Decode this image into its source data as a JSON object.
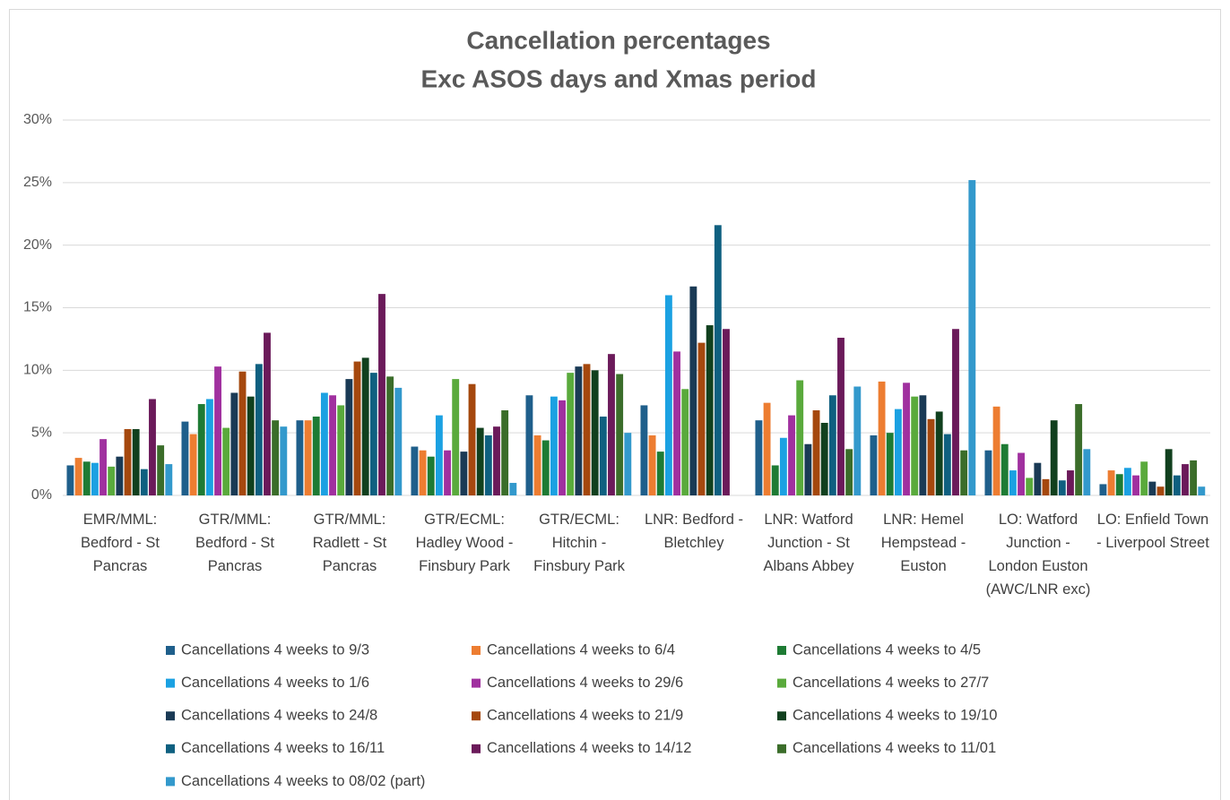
{
  "chart_data": {
    "type": "bar",
    "title": "Cancellation percentages",
    "subtitle": "Exc ASOS days and Xmas period",
    "categories": [
      "EMR/MML: Bedford - St Pancras",
      "GTR/MML: Bedford - St Pancras",
      "GTR/MML: Radlett - St Pancras",
      "GTR/ECML: Hadley Wood - Finsbury Park",
      "GTR/ECML: Hitchin - Finsbury Park",
      "LNR: Bedford - Bletchley",
      "LNR: Watford Junction - St Albans Abbey",
      "LNR: Hemel Hempstead - Euston",
      "LO: Watford Junction - London Euston (AWC/LNR exc)",
      "LO: Enfield Town - Liverpool Street"
    ],
    "series": [
      {
        "name": "Cancellations 4 weeks to 9/3",
        "color": "#1f5f8b",
        "values": [
          2.4,
          5.9,
          6.0,
          3.9,
          8.0,
          7.2,
          6.0,
          4.8,
          3.6,
          0.9
        ]
      },
      {
        "name": "Cancellations 4 weeks to 6/4",
        "color": "#ed7d31",
        "values": [
          3.0,
          4.9,
          6.0,
          3.6,
          4.8,
          4.8,
          7.4,
          9.1,
          7.1,
          2.0
        ]
      },
      {
        "name": "Cancellations 4 weeks to 4/5",
        "color": "#1e7b34",
        "values": [
          2.7,
          7.3,
          6.3,
          3.1,
          4.4,
          3.5,
          2.4,
          5.0,
          4.1,
          1.7
        ]
      },
      {
        "name": "Cancellations 4 weeks to 1/6",
        "color": "#1ba1e2",
        "values": [
          2.6,
          7.7,
          8.2,
          6.4,
          7.9,
          16.0,
          4.6,
          6.9,
          2.0,
          2.2
        ]
      },
      {
        "name": "Cancellations 4 weeks to 29/6",
        "color": "#a0309f",
        "values": [
          4.5,
          10.3,
          8.0,
          3.6,
          7.6,
          11.5,
          6.4,
          9.0,
          3.4,
          1.6
        ]
      },
      {
        "name": "Cancellations 4 weeks to 27/7",
        "color": "#5aaa3c",
        "values": [
          2.3,
          5.4,
          7.2,
          9.3,
          9.8,
          8.5,
          9.2,
          7.9,
          1.4,
          2.7
        ]
      },
      {
        "name": "Cancellations 4 weeks to 24/8",
        "color": "#1a3a55",
        "values": [
          3.1,
          8.2,
          9.3,
          3.5,
          10.3,
          16.7,
          4.1,
          8.0,
          2.6,
          1.1
        ]
      },
      {
        "name": "Cancellations 4 weeks to 21/9",
        "color": "#a5480e",
        "values": [
          5.3,
          9.9,
          10.7,
          8.9,
          10.5,
          12.2,
          6.8,
          6.1,
          1.3,
          0.7
        ]
      },
      {
        "name": "Cancellations 4 weeks to 19/10",
        "color": "#11401e",
        "values": [
          5.3,
          7.9,
          11.0,
          5.4,
          10.0,
          13.6,
          5.8,
          6.7,
          6.0,
          3.7
        ]
      },
      {
        "name": "Cancellations 4 weeks to 16/11",
        "color": "#0f6080",
        "values": [
          2.1,
          10.5,
          9.8,
          4.8,
          6.3,
          21.6,
          8.0,
          4.9,
          1.2,
          1.6
        ]
      },
      {
        "name": "Cancellations 4 weeks to 14/12",
        "color": "#6b1a5a",
        "values": [
          7.7,
          13.0,
          16.1,
          5.5,
          11.3,
          13.3,
          12.6,
          13.3,
          2.0,
          2.5
        ]
      },
      {
        "name": "Cancellations 4 weeks to 11/01",
        "color": "#3b6d2a",
        "values": [
          4.0,
          6.0,
          9.5,
          6.8,
          9.7,
          null,
          3.7,
          3.6,
          7.3,
          2.8
        ]
      },
      {
        "name": "Cancellations 4 weeks to 08/02 (part)",
        "color": "#3399cc",
        "values": [
          2.5,
          5.5,
          8.6,
          1.0,
          5.0,
          null,
          8.7,
          25.2,
          3.7,
          0.7
        ]
      }
    ],
    "ylim": [
      0,
      30
    ],
    "yticks": [
      {
        "value": 0,
        "label": "0%"
      },
      {
        "value": 5,
        "label": "5%"
      },
      {
        "value": 10,
        "label": "10%"
      },
      {
        "value": 15,
        "label": "15%"
      },
      {
        "value": 20,
        "label": "20%"
      },
      {
        "value": 25,
        "label": "25%"
      },
      {
        "value": 30,
        "label": "30%"
      }
    ],
    "grid": true
  }
}
